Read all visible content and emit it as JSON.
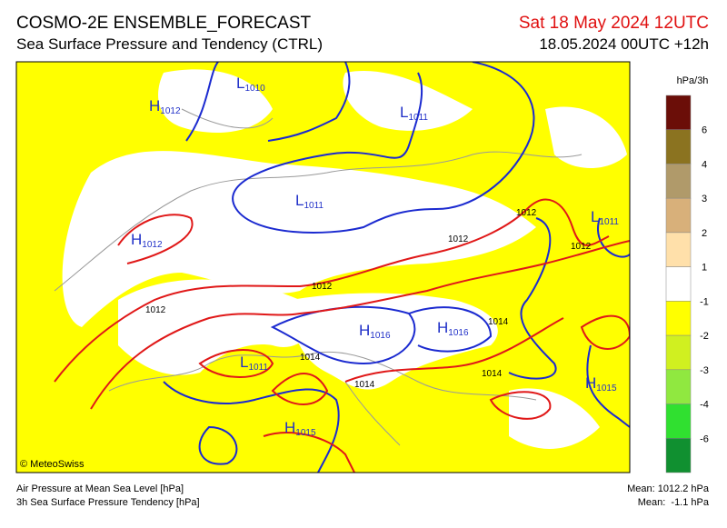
{
  "header": {
    "title": "COSMO-2E ENSEMBLE_FORECAST",
    "subtitle": "Sea Surface Pressure and Tendency (CTRL)",
    "valid_time": "Sat 18 May 2024 12UTC",
    "run": "18.05.2024 00UTC +12h"
  },
  "legend": {
    "unit": "hPa/3h",
    "labels": [
      "6",
      "4",
      "3",
      "2",
      "1",
      "-1",
      "-2",
      "-3",
      "-4",
      "-6"
    ]
  },
  "map": {
    "centers": [
      {
        "kind": "L",
        "value": "1010"
      },
      {
        "kind": "H",
        "value": "1012"
      },
      {
        "kind": "L",
        "value": "1011"
      },
      {
        "kind": "L",
        "value": "1011"
      },
      {
        "kind": "L",
        "value": "1011"
      },
      {
        "kind": "H",
        "value": "1012"
      },
      {
        "kind": "H",
        "value": "1016"
      },
      {
        "kind": "H",
        "value": "1016"
      },
      {
        "kind": "L",
        "value": "1011"
      },
      {
        "kind": "H",
        "value": "1015"
      },
      {
        "kind": "H",
        "value": "1015"
      }
    ],
    "isobar_labels": [
      "1012",
      "1012",
      "1012",
      "1012",
      "1012",
      "1014",
      "1014",
      "1014",
      "1014"
    ]
  },
  "footer": {
    "copyright": "© MeteoSwiss",
    "line1": "Air Pressure at Mean Sea Level [hPa]",
    "line2": "3h Sea Surface Pressure Tendency [hPa]",
    "mean1": "Mean: 1012.2 hPa",
    "mean2": "Mean:  -1.1 hPa"
  }
}
